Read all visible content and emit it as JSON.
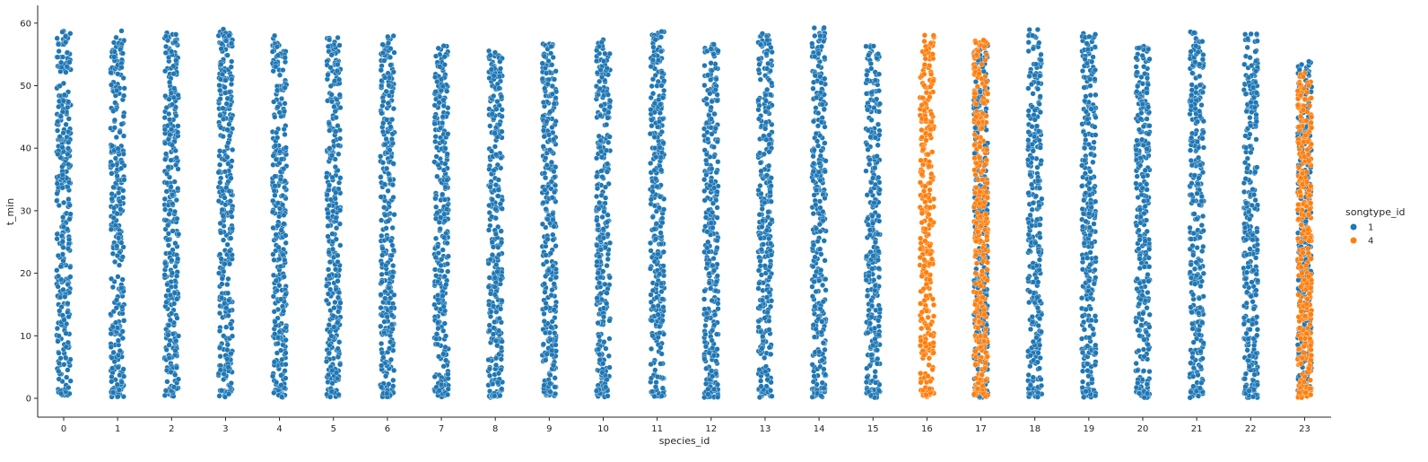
{
  "chart_data": {
    "type": "scatter",
    "subtype": "strip",
    "title": "",
    "xlabel": "species_id",
    "ylabel": "t_min",
    "categories": [
      "0",
      "1",
      "2",
      "3",
      "4",
      "5",
      "6",
      "7",
      "8",
      "9",
      "10",
      "11",
      "12",
      "13",
      "14",
      "15",
      "16",
      "17",
      "18",
      "19",
      "20",
      "21",
      "22",
      "23"
    ],
    "ylim": [
      -3,
      62.5
    ],
    "yticks": [
      0,
      10,
      20,
      30,
      40,
      50,
      60
    ],
    "grid": false,
    "legend": {
      "title": "songtype_id",
      "placement": "center-right"
    },
    "series": [
      {
        "name": "1",
        "color": "#1f77b4",
        "categories": [
          "0",
          "1",
          "2",
          "3",
          "4",
          "5",
          "6",
          "7",
          "8",
          "9",
          "10",
          "11",
          "12",
          "13",
          "14",
          "15",
          "17",
          "18",
          "19",
          "20",
          "21",
          "22",
          "23"
        ],
        "ranges": [
          [
            0.2,
            59
          ],
          [
            0.1,
            59
          ],
          [
            0.2,
            58.5
          ],
          [
            0.2,
            59.3
          ],
          [
            0.1,
            58
          ],
          [
            0.1,
            57.8
          ],
          [
            0.2,
            58
          ],
          [
            0.1,
            57
          ],
          [
            0.1,
            55.8
          ],
          [
            0.2,
            57.2
          ],
          [
            0.2,
            57.6
          ],
          [
            0.2,
            58.7
          ],
          [
            0.1,
            56.8
          ],
          [
            0.1,
            58.5
          ],
          [
            0.2,
            59.3
          ],
          [
            0.1,
            56.7
          ],
          [
            0.1,
            56.5
          ],
          [
            0.2,
            59.2
          ],
          [
            0.1,
            58.5
          ],
          [
            0.1,
            56.5
          ],
          [
            0.1,
            58.8
          ],
          [
            0.1,
            58.3
          ],
          [
            0.5,
            53.9
          ]
        ]
      },
      {
        "name": "4",
        "color": "#ff7f0e",
        "categories": [
          "16",
          "17",
          "23"
        ],
        "ranges": [
          [
            0.1,
            58.1
          ],
          [
            0.1,
            57.4
          ],
          [
            0.1,
            52.5
          ]
        ]
      }
    ]
  }
}
